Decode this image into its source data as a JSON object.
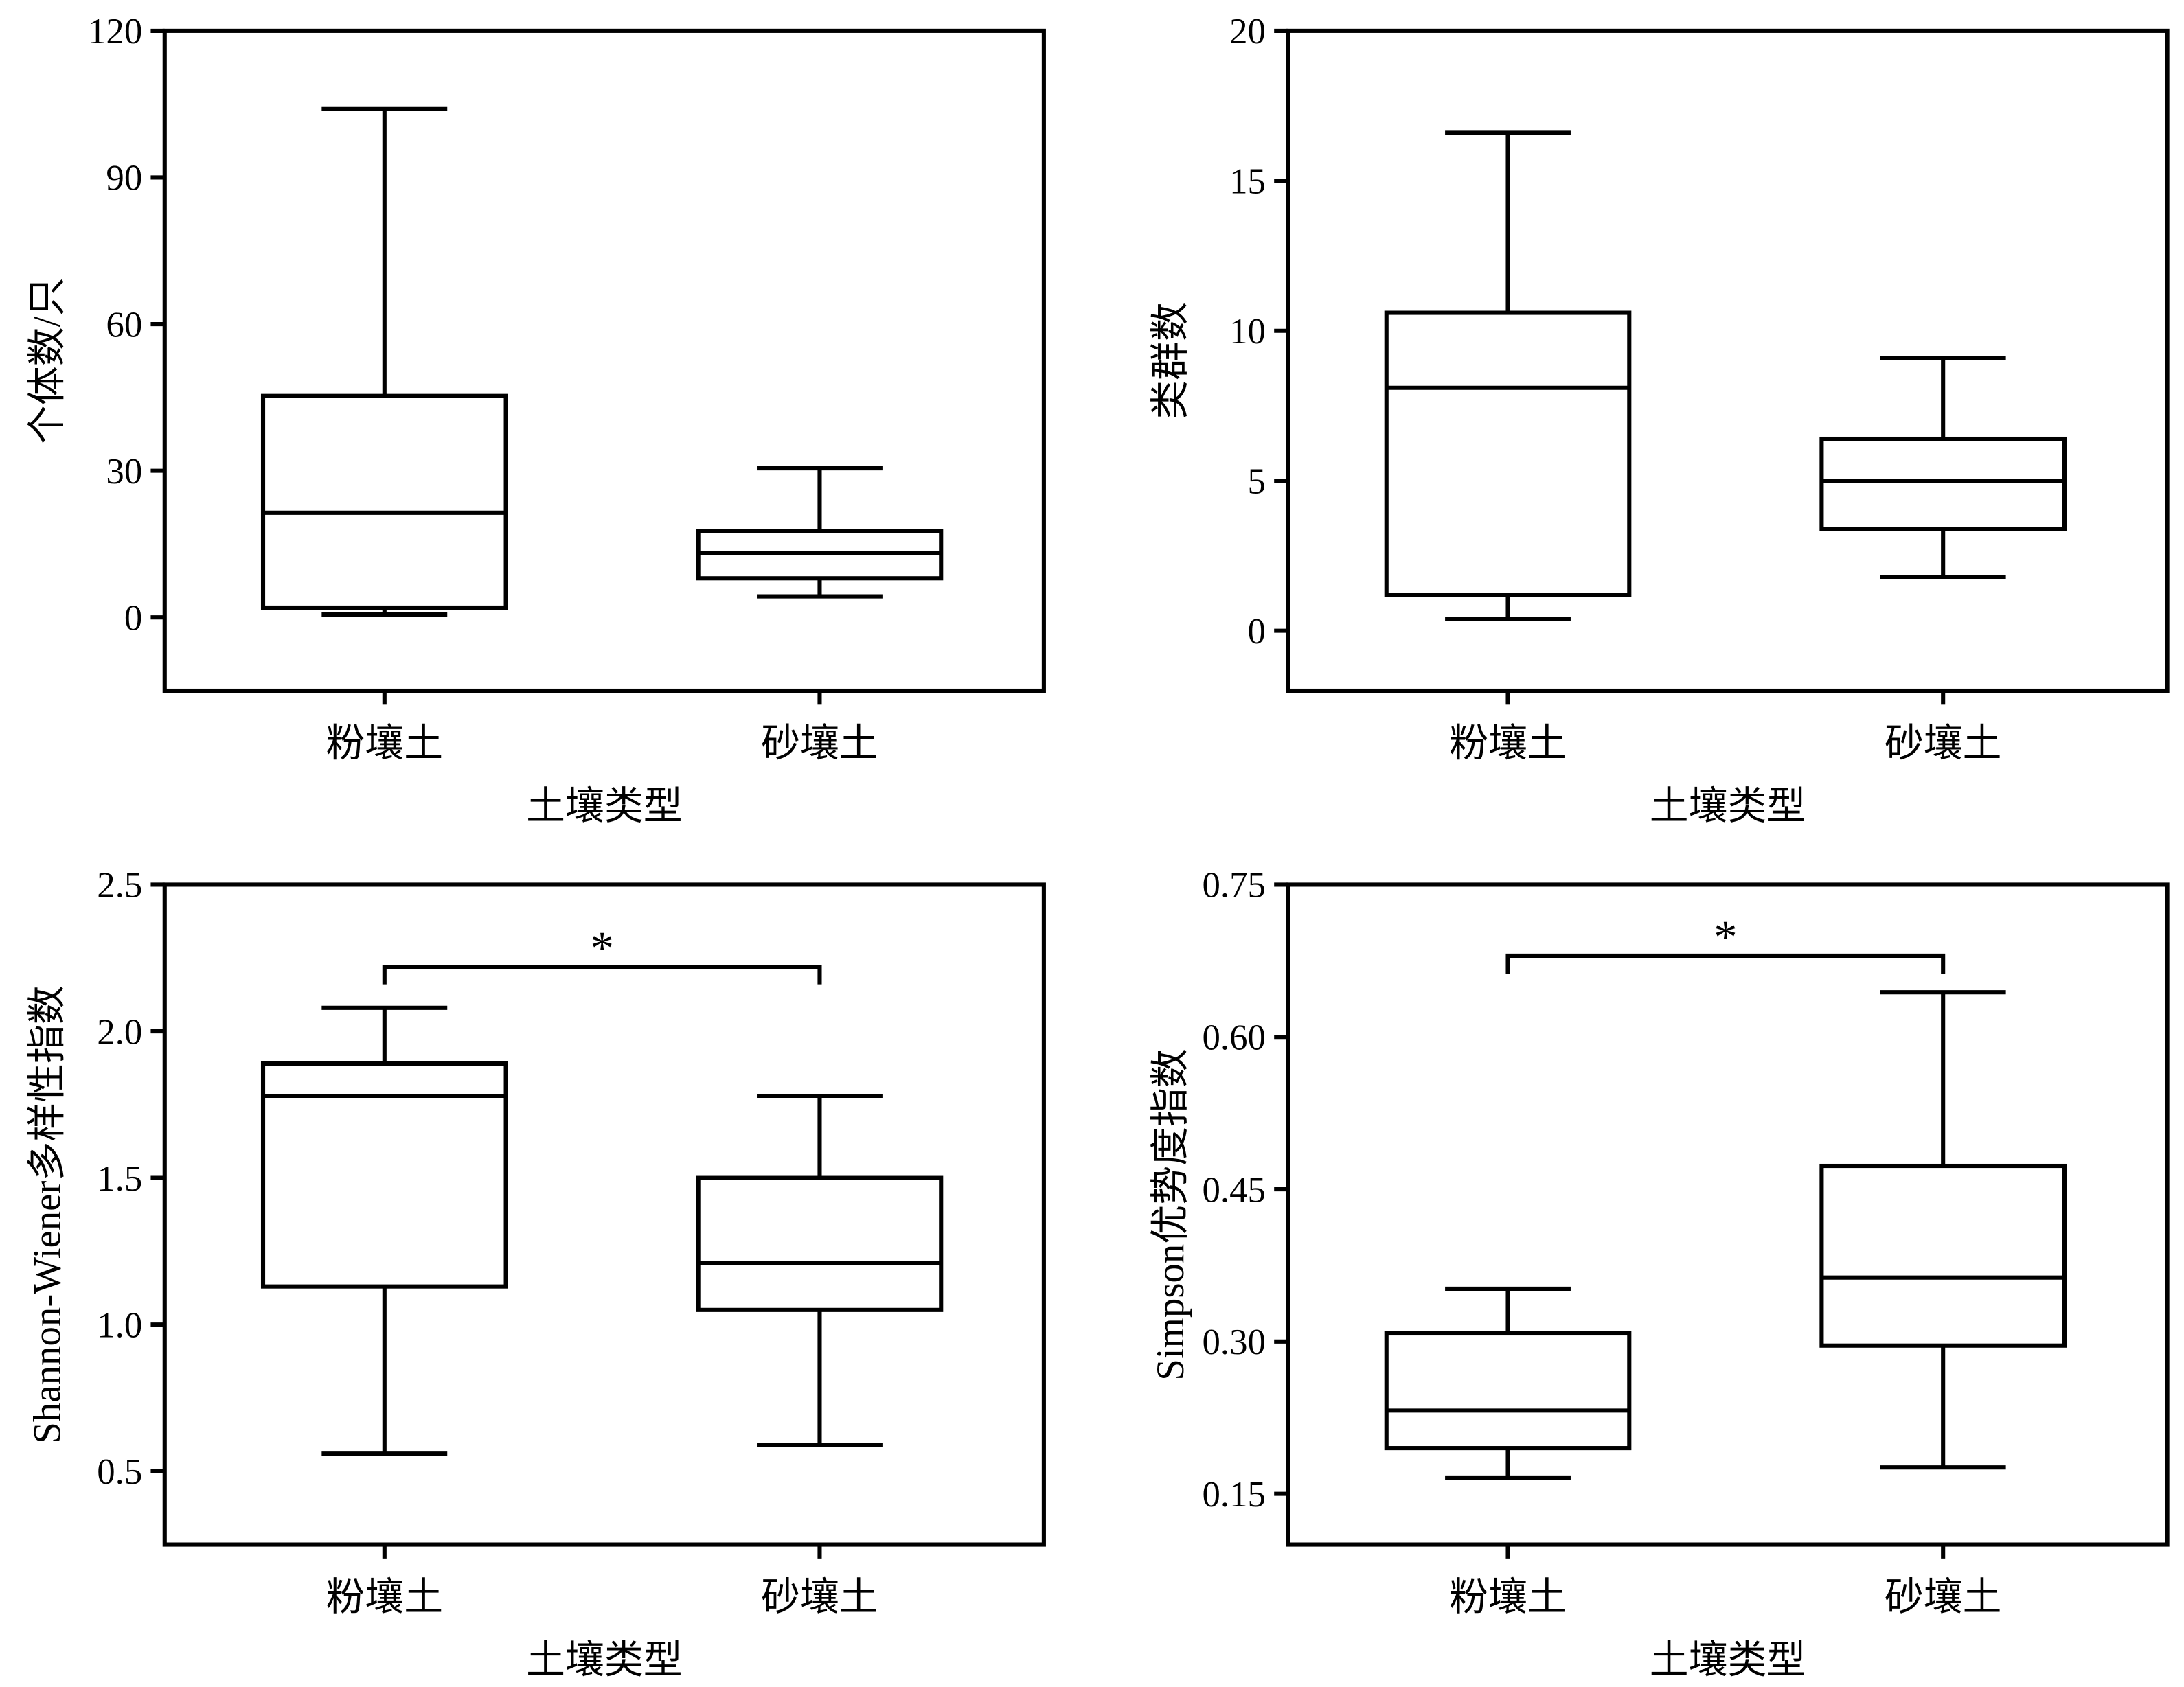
{
  "chart_data": [
    {
      "type": "box",
      "ylabel": "个体数/只",
      "xlabel": "土壤类型",
      "categories": [
        "粉壤土",
        "砂壤土"
      ],
      "ylim": [
        -15,
        120
      ],
      "yticks": [
        0,
        30,
        60,
        90,
        120
      ],
      "ytick_labels": [
        "0",
        "30",
        "60",
        "90",
        "120"
      ],
      "boxes": [
        {
          "min": 0.6,
          "q1": 2,
          "median": 21.4,
          "q3": 45.3,
          "max": 104
        },
        {
          "min": 4.3,
          "q1": 8,
          "median": 13.1,
          "q3": 17.7,
          "max": 30.5
        }
      ],
      "significance": null
    },
    {
      "type": "box",
      "ylabel": "类群数",
      "xlabel": "土壤类型",
      "categories": [
        "粉壤土",
        "砂壤土"
      ],
      "ylim": [
        -2,
        20
      ],
      "yticks": [
        0,
        5,
        10,
        15,
        20
      ],
      "ytick_labels": [
        "0",
        "5",
        "10",
        "15",
        "20"
      ],
      "boxes": [
        {
          "min": 0.4,
          "q1": 1.2,
          "median": 8.1,
          "q3": 10.6,
          "max": 16.6
        },
        {
          "min": 1.8,
          "q1": 3.4,
          "median": 5.0,
          "q3": 6.4,
          "max": 9.1
        }
      ],
      "significance": null
    },
    {
      "type": "box",
      "ylabel": "Shannon-Wiener多样性指数",
      "xlabel": "土壤类型",
      "categories": [
        "粉壤土",
        "砂壤土"
      ],
      "ylim": [
        0.25,
        2.5
      ],
      "yticks": [
        0.5,
        1.0,
        1.5,
        2.0,
        2.5
      ],
      "ytick_labels": [
        "0.5",
        "1.0",
        "1.5",
        "2.0",
        "2.5"
      ],
      "boxes": [
        {
          "min": 0.56,
          "q1": 1.13,
          "median": 1.78,
          "q3": 1.89,
          "max": 2.08
        },
        {
          "min": 0.59,
          "q1": 1.05,
          "median": 1.21,
          "q3": 1.5,
          "max": 1.78
        }
      ],
      "significance": {
        "label": "*",
        "level": 2.22,
        "leg_to": 2.16
      }
    },
    {
      "type": "box",
      "ylabel": "Simpson优势度指数",
      "xlabel": "土壤类型",
      "categories": [
        "粉壤土",
        "砂壤土"
      ],
      "ylim": [
        0.1,
        0.75
      ],
      "yticks": [
        0.15,
        0.3,
        0.45,
        0.6,
        0.75
      ],
      "ytick_labels": [
        "0.15",
        "0.30",
        "0.45",
        "0.60",
        "0.75"
      ],
      "boxes": [
        {
          "min": 0.166,
          "q1": 0.195,
          "median": 0.232,
          "q3": 0.308,
          "max": 0.352
        },
        {
          "min": 0.176,
          "q1": 0.296,
          "median": 0.363,
          "q3": 0.473,
          "max": 0.644
        }
      ],
      "significance": {
        "label": "*",
        "level": 0.68,
        "leg_to": 0.662
      }
    }
  ]
}
